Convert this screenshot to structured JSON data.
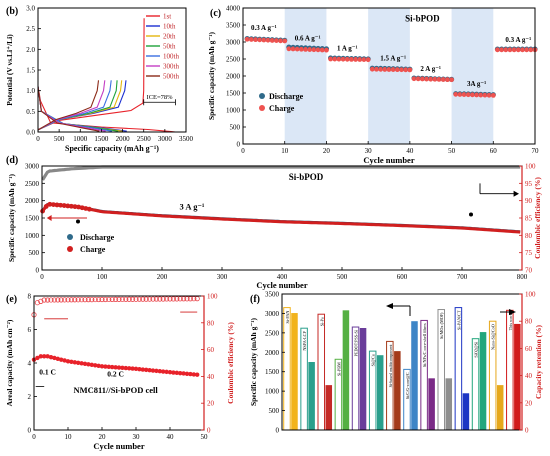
{
  "chart_data": [
    {
      "panel": "(b)",
      "type": "line",
      "xlabel": "Specific capacity (mAh g⁻¹)",
      "ylabel": "Potential (V vs.Li⁺/Li)",
      "xlim": [
        0,
        3500
      ],
      "ylim": [
        0.0,
        3.0
      ],
      "xticks": [
        "0",
        "500",
        "1000",
        "1500",
        "2000",
        "2500",
        "3000",
        "3500"
      ],
      "yticks": [
        "0.0",
        "0.5",
        "1.0",
        "1.5",
        "2.0",
        "2.5",
        "3.0"
      ],
      "annotation": "ICE=78%",
      "legend_position": "top-right",
      "series": [
        {
          "name": "1st",
          "color": "#e8222a",
          "discharge": [
            [
              0,
              1.1
            ],
            [
              60,
              0.75
            ],
            [
              300,
              0.22
            ],
            [
              1500,
              0.12
            ],
            [
              2600,
              0.06
            ],
            [
              3150,
              0.01
            ],
            [
              3250,
              0.0
            ]
          ],
          "charge": [
            [
              0,
              0.05
            ],
            [
              500,
              0.28
            ],
            [
              1500,
              0.42
            ],
            [
              2200,
              0.52
            ],
            [
              2480,
              0.7
            ],
            [
              2500,
              1.0
            ],
            [
              2510,
              2.75
            ]
          ]
        },
        {
          "name": "10th",
          "color": "#1c2fd1",
          "discharge": [
            [
              0,
              1.1
            ],
            [
              80,
              0.5
            ],
            [
              600,
              0.2
            ],
            [
              1600,
              0.09
            ],
            [
              2100,
              0.02
            ]
          ],
          "charge": [
            [
              0,
              0.05
            ],
            [
              500,
              0.3
            ],
            [
              1300,
              0.45
            ],
            [
              1900,
              0.6
            ],
            [
              2050,
              1.0
            ],
            [
              2080,
              1.25
            ]
          ]
        },
        {
          "name": "20th",
          "color": "#e3b60f",
          "discharge": [
            [
              0,
              1.1
            ],
            [
              80,
              0.5
            ],
            [
              600,
              0.2
            ],
            [
              1500,
              0.09
            ],
            [
              2000,
              0.02
            ]
          ],
          "charge": [
            [
              0,
              0.05
            ],
            [
              500,
              0.3
            ],
            [
              1250,
              0.45
            ],
            [
              1800,
              0.6
            ],
            [
              1950,
              1.0
            ],
            [
              1980,
              1.25
            ]
          ]
        },
        {
          "name": "50th",
          "color": "#1fa33a",
          "discharge": [
            [
              0,
              1.1
            ],
            [
              80,
              0.5
            ],
            [
              600,
              0.2
            ],
            [
              1400,
              0.1
            ],
            [
              1900,
              0.02
            ]
          ],
          "charge": [
            [
              0,
              0.05
            ],
            [
              500,
              0.3
            ],
            [
              1200,
              0.45
            ],
            [
              1700,
              0.6
            ],
            [
              1850,
              1.0
            ],
            [
              1870,
              1.25
            ]
          ]
        },
        {
          "name": "100th",
          "color": "#3b6fe0",
          "discharge": [
            [
              0,
              1.1
            ],
            [
              80,
              0.5
            ],
            [
              600,
              0.2
            ],
            [
              1300,
              0.1
            ],
            [
              1750,
              0.02
            ]
          ],
          "charge": [
            [
              0,
              0.05
            ],
            [
              500,
              0.3
            ],
            [
              1100,
              0.45
            ],
            [
              1550,
              0.6
            ],
            [
              1700,
              1.0
            ],
            [
              1730,
              1.25
            ]
          ]
        },
        {
          "name": "300th",
          "color": "#c43dc4",
          "discharge": [
            [
              0,
              1.1
            ],
            [
              80,
              0.5
            ],
            [
              500,
              0.22
            ],
            [
              1150,
              0.1
            ],
            [
              1600,
              0.02
            ]
          ],
          "charge": [
            [
              0,
              0.05
            ],
            [
              450,
              0.3
            ],
            [
              1000,
              0.45
            ],
            [
              1400,
              0.6
            ],
            [
              1550,
              1.0
            ],
            [
              1580,
              1.25
            ]
          ]
        },
        {
          "name": "500th",
          "color": "#8c2a18",
          "discharge": [
            [
              0,
              1.1
            ],
            [
              80,
              0.5
            ],
            [
              450,
              0.22
            ],
            [
              1050,
              0.1
            ],
            [
              1450,
              0.02
            ]
          ],
          "charge": [
            [
              0,
              0.05
            ],
            [
              420,
              0.3
            ],
            [
              900,
              0.45
            ],
            [
              1250,
              0.6
            ],
            [
              1400,
              1.0
            ],
            [
              1430,
              1.25
            ]
          ]
        }
      ]
    },
    {
      "panel": "(c)",
      "type": "scatter",
      "title": "Si-bPOD",
      "xlabel": "Cycle number",
      "ylabel": "Specific capacity (mAh g⁻¹)",
      "xlim": [
        0,
        70
      ],
      "ylim": [
        0,
        4000
      ],
      "xticks": [
        "0",
        "10",
        "20",
        "30",
        "40",
        "50",
        "60",
        "70"
      ],
      "yticks": [
        "0",
        "500",
        "1000",
        "1500",
        "2000",
        "2500",
        "3000",
        "3500",
        "4000"
      ],
      "rate_labels": [
        "0.3 A g⁻¹",
        "0.6 A g⁻¹",
        "1 A g⁻¹",
        "1.5 A g⁻¹",
        "2 A g⁻¹",
        "3A g⁻¹",
        "0.3 A g⁻¹"
      ],
      "segments": [
        {
          "rate": "0.3",
          "x": [
            1,
            10
          ],
          "discharge": [
            3100,
            3050
          ],
          "charge": [
            3080,
            3030
          ]
        },
        {
          "rate": "0.6",
          "x": [
            11,
            20
          ],
          "discharge": [
            2850,
            2800
          ],
          "charge": [
            2800,
            2760
          ]
        },
        {
          "rate": "1",
          "x": [
            21,
            30
          ],
          "discharge": [
            2530,
            2500
          ],
          "charge": [
            2500,
            2480
          ]
        },
        {
          "rate": "1.5",
          "x": [
            31,
            40
          ],
          "discharge": [
            2230,
            2200
          ],
          "charge": [
            2200,
            2180
          ]
        },
        {
          "rate": "2",
          "x": [
            41,
            50
          ],
          "discharge": [
            1940,
            1900
          ],
          "charge": [
            1920,
            1890
          ]
        },
        {
          "rate": "3",
          "x": [
            51,
            60
          ],
          "discharge": [
            1480,
            1450
          ],
          "charge": [
            1460,
            1430
          ]
        },
        {
          "rate": "0.3",
          "x": [
            61,
            70
          ],
          "discharge": [
            2790,
            2790
          ],
          "charge": [
            2770,
            2770
          ]
        }
      ],
      "legend": [
        "Discharge",
        "Charge"
      ],
      "legend_position": "center-left"
    },
    {
      "panel": "(d)",
      "type": "scatter",
      "title": "Si-bPOD",
      "xlabel": "Cycle number",
      "ylabel": "Specific capacity (mAh g⁻¹)",
      "ylabel_right": "Coulombic efficiency (%)",
      "xlim": [
        0,
        800
      ],
      "ylim": [
        0,
        3000
      ],
      "ylim_right": [
        70,
        100
      ],
      "xticks": [
        "0",
        "100",
        "200",
        "300",
        "400",
        "500",
        "600",
        "700",
        "800"
      ],
      "yticks": [
        "0",
        "500",
        "1000",
        "1500",
        "2000",
        "2500",
        "3000"
      ],
      "yticks_right": [
        "70",
        "75",
        "80",
        "85",
        "90",
        "95",
        "100"
      ],
      "annotation": "3 A g⁻¹",
      "legend": [
        "Discharge",
        "Charge"
      ],
      "legend_position": "bottom-left",
      "capacity": [
        [
          1,
          1700
        ],
        [
          10,
          1900
        ],
        [
          30,
          1870
        ],
        [
          60,
          1820
        ],
        [
          100,
          1680
        ],
        [
          200,
          1560
        ],
        [
          300,
          1470
        ],
        [
          400,
          1390
        ],
        [
          500,
          1340
        ],
        [
          600,
          1280
        ],
        [
          700,
          1210
        ],
        [
          800,
          1090
        ]
      ],
      "efficiency": [
        [
          1,
          96
        ],
        [
          10,
          98.5
        ],
        [
          50,
          99.2
        ],
        [
          100,
          99.7
        ],
        [
          800,
          99.7
        ]
      ]
    },
    {
      "panel": "(e)",
      "type": "scatter",
      "title": "NMC811//Si-bPOD cell",
      "xlabel": "Cycle number",
      "ylabel": "Areal capacity (mAh cm⁻²)",
      "ylabel_right": "Coulombic efficiency (%)",
      "xlim": [
        0,
        50
      ],
      "ylim": [
        0,
        8
      ],
      "ylim_right": [
        0,
        100
      ],
      "xticks": [
        "0",
        "10",
        "20",
        "30",
        "40",
        "50"
      ],
      "yticks": [
        "0",
        "2",
        "4",
        "6",
        "8"
      ],
      "yticks_right": [
        "0",
        "20",
        "40",
        "60",
        "80",
        "100"
      ],
      "annotations": [
        "0.1 C",
        "0.2 C"
      ],
      "capacity": [
        [
          0,
          4.2
        ],
        [
          2,
          4.4
        ],
        [
          4,
          4.4
        ],
        [
          10,
          4.1
        ],
        [
          20,
          3.8
        ],
        [
          30,
          3.65
        ],
        [
          40,
          3.45
        ],
        [
          48,
          3.3
        ]
      ],
      "efficiency": [
        [
          0,
          86
        ],
        [
          1,
          95
        ],
        [
          3,
          97
        ],
        [
          48,
          98
        ]
      ]
    },
    {
      "panel": "(f)",
      "type": "bar",
      "ylabel": "Specific capacity (mAh g⁻¹)",
      "ylabel_right": "Capacity retention (%)",
      "ylim": [
        0,
        3500
      ],
      "ylim_right": [
        0,
        100
      ],
      "yticks": [
        "0",
        "500",
        "1000",
        "1500",
        "2000",
        "2500",
        "3000",
        "3500"
      ],
      "yticks_right": [
        "0",
        "20",
        "40",
        "60",
        "80",
        "100"
      ],
      "categories": [
        "Si-PAN",
        "NSPA-LCP",
        "Si-Pa",
        "Si-PBM",
        "PEDOT:PSS-Si",
        "Si@Cu",
        "Si-based multicomponent",
        "Si/C/G-core@C",
        "Si/NPs/C core-shell fibers",
        "Si/MOx (MOF)",
        "Si-PAN/CT",
        "SiO2@Si",
        "Nano-Si@CoO",
        "This work"
      ],
      "capacity": [
        3150,
        2620,
        2980,
        1820,
        2650,
        2030,
        2280,
        1560,
        2820,
        3100,
        3150,
        2350,
        2800,
        3080
      ],
      "retention": [
        86,
        50,
        33,
        88,
        75,
        55,
        58,
        80,
        38,
        38,
        27,
        72,
        33,
        78
      ],
      "colors": [
        "#f2b31c",
        "#2a9f8c",
        "#c42a26",
        "#55b043",
        "#6a3d9a",
        "#2a9f8c",
        "#a43a1a",
        "#3d85c6",
        "#7a2a86",
        "#8e8e8e",
        "#1c35c4",
        "#22a67c",
        "#e6a81c",
        "#d11a1a"
      ]
    }
  ]
}
